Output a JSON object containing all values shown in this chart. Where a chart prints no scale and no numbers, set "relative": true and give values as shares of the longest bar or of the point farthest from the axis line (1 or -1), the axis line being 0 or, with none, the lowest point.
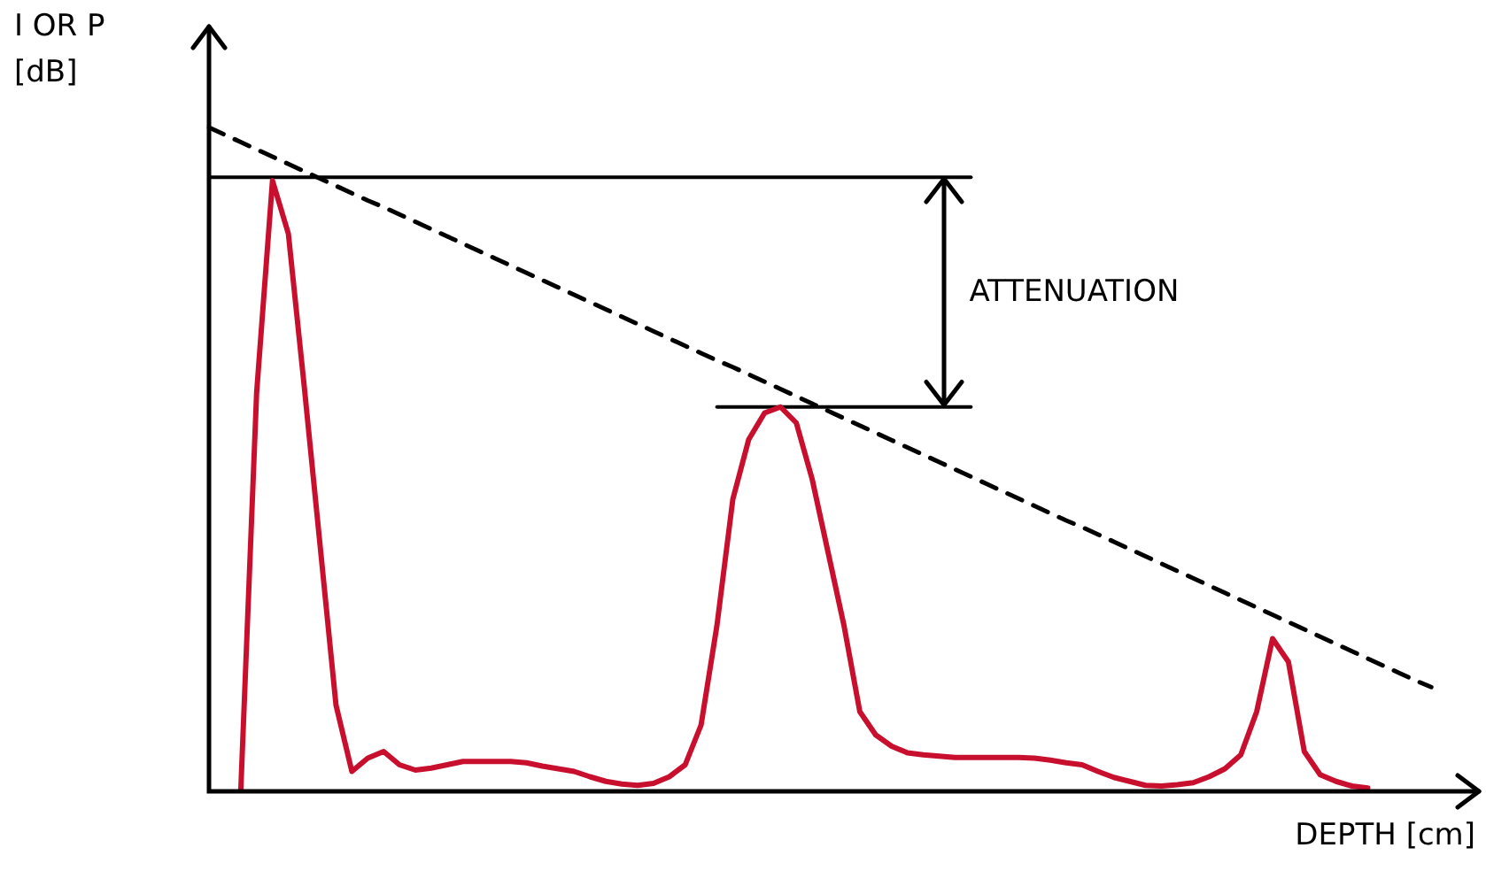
{
  "chart_data": {
    "type": "line",
    "relative": true,
    "xlabel": "DEPTH [cm]",
    "ylabel": "I OR P [dB]",
    "legend": false,
    "marker": "none",
    "annotations": [
      "ATTENUATION"
    ],
    "categories": [
      null,
      null,
      null,
      null,
      null,
      null,
      null,
      null,
      null,
      null,
      null,
      null,
      null,
      null,
      null,
      null,
      null,
      null,
      null,
      null,
      null,
      null,
      null,
      null,
      null,
      null,
      null,
      null,
      null,
      null,
      null,
      null,
      null,
      null,
      null,
      null,
      null,
      null,
      null,
      null,
      null,
      null,
      null,
      null,
      null,
      null,
      null,
      null,
      null,
      null,
      null,
      null,
      null,
      null,
      null,
      null,
      null,
      null,
      null,
      null,
      null,
      null,
      null,
      null,
      null,
      null,
      null,
      null,
      null,
      null,
      null,
      null,
      null,
      null,
      null,
      null,
      null,
      null,
      null,
      null,
      null
    ],
    "series": [
      {
        "color": "#c8102e",
        "line_style": "solid",
        "values": [
          null,
          null,
          0,
          0.6,
          0.92,
          0.84,
          0.61,
          0.37,
          0.13,
          0.03,
          0.05,
          0.06,
          0.04,
          0.032,
          0.035,
          0.04,
          0.045,
          0.045,
          0.045,
          0.045,
          0.043,
          0.038,
          0.034,
          0.03,
          0.022,
          0.015,
          0.011,
          0.009,
          0.012,
          0.022,
          0.04,
          0.1,
          0.25,
          0.44,
          0.53,
          0.57,
          0.579,
          0.555,
          0.47,
          0.36,
          0.25,
          0.12,
          0.085,
          0.068,
          0.058,
          0.055,
          0.053,
          0.051,
          0.051,
          0.051,
          0.051,
          0.051,
          0.05,
          0.047,
          0.043,
          0.04,
          0.03,
          0.021,
          0.015,
          0.009,
          0.008,
          0.01,
          0.013,
          0.022,
          0.034,
          0.055,
          0.12,
          0.23,
          0.195,
          0.06,
          0.025,
          0.015,
          0.008,
          0.005,
          null,
          null,
          null,
          null,
          null,
          null,
          null
        ]
      },
      {
        "color": "#000000",
        "line_style": "dashed",
        "values": [
          1,
          0.989,
          0.978,
          0.967,
          0.956,
          0.945,
          0.934,
          0.923,
          0.912,
          0.901,
          0.89,
          0.88,
          0.869,
          0.858,
          0.847,
          0.836,
          0.825,
          0.814,
          0.803,
          0.792,
          0.781,
          0.77,
          0.759,
          0.748,
          0.737,
          0.726,
          0.715,
          0.704,
          0.693,
          0.682,
          0.671,
          0.66,
          0.649,
          0.639,
          0.628,
          0.617,
          0.606,
          0.595,
          0.584,
          0.573,
          0.562,
          0.551,
          0.54,
          0.529,
          0.518,
          0.507,
          0.496,
          0.485,
          0.474,
          0.463,
          0.452,
          0.441,
          0.43,
          0.419,
          0.408,
          0.398,
          0.387,
          0.376,
          0.365,
          0.354,
          0.343,
          0.332,
          0.321,
          0.31,
          0.299,
          0.288,
          0.277,
          0.266,
          0.255,
          0.244,
          0.233,
          0.222,
          0.211,
          0.2,
          0.189,
          0.178,
          0.167,
          0.157,
          null,
          null,
          null
        ]
      },
      {
        "color": "#000000",
        "line_style": "solid",
        "values": [
          0.925,
          0.925,
          0.925,
          0.925,
          0.925,
          0.925,
          0.925,
          0.925,
          0.925,
          0.925,
          0.925,
          0.925,
          0.925,
          0.925,
          0.925,
          0.925,
          0.925,
          0.925,
          0.925,
          0.925,
          0.925,
          0.925,
          0.925,
          0.925,
          0.925,
          0.925,
          0.925,
          0.925,
          0.925,
          0.925,
          0.925,
          0.925,
          0.925,
          0.925,
          0.925,
          0.925,
          0.925,
          0.925,
          0.925,
          0.925,
          0.925,
          0.925,
          0.925,
          0.925,
          0.925,
          0.925,
          0.925,
          0.925,
          0.925,
          null,
          null,
          null,
          null,
          null,
          null,
          null,
          null,
          null,
          null,
          null,
          null,
          null,
          null,
          null,
          null,
          null,
          null,
          null,
          null,
          null,
          null,
          null,
          null,
          null,
          null,
          null,
          null,
          null,
          null,
          null,
          null
        ]
      },
      {
        "color": "#000000",
        "line_style": "solid",
        "values": [
          null,
          null,
          null,
          null,
          null,
          null,
          null,
          null,
          null,
          null,
          null,
          null,
          null,
          null,
          null,
          null,
          null,
          null,
          null,
          null,
          null,
          null,
          null,
          null,
          null,
          null,
          null,
          null,
          null,
          null,
          null,
          null,
          0.579,
          0.579,
          0.579,
          0.579,
          0.579,
          0.579,
          0.579,
          0.579,
          0.579,
          0.579,
          0.579,
          0.579,
          0.579,
          0.579,
          0.579,
          0.579,
          0.579,
          null,
          null,
          null,
          null,
          null,
          null,
          null,
          null,
          null,
          null,
          null,
          null,
          null,
          null,
          null,
          null,
          null,
          null,
          null,
          null,
          null,
          null,
          null,
          null,
          null,
          null,
          null,
          null,
          null,
          null,
          null,
          null
        ]
      }
    ]
  }
}
